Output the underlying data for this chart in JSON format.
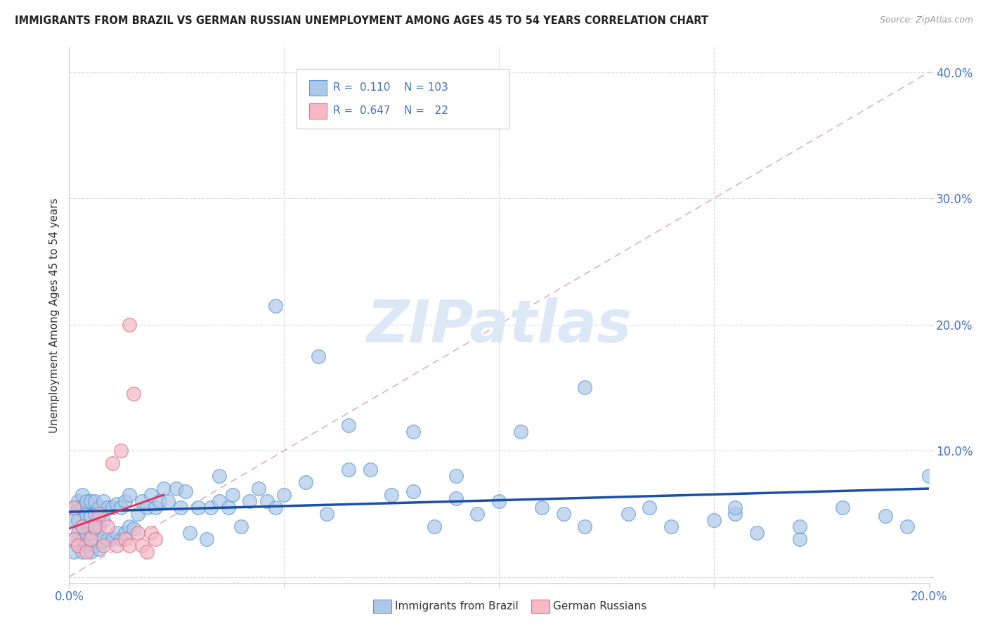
{
  "title": "IMMIGRANTS FROM BRAZIL VS GERMAN RUSSIAN UNEMPLOYMENT AMONG AGES 45 TO 54 YEARS CORRELATION CHART",
  "source": "Source: ZipAtlas.com",
  "ylabel": "Unemployment Among Ages 45 to 54 years",
  "xmin": 0.0,
  "xmax": 0.2,
  "ymin": -0.005,
  "ymax": 0.42,
  "x_ticks": [
    0.0,
    0.05,
    0.1,
    0.15,
    0.2
  ],
  "x_tick_labels": [
    "0.0%",
    "",
    "",
    "",
    "20.0%"
  ],
  "y_ticks": [
    0.0,
    0.1,
    0.2,
    0.3,
    0.4
  ],
  "y_tick_labels": [
    "",
    "10.0%",
    "20.0%",
    "30.0%",
    "40.0%"
  ],
  "brazil_color": "#adc8e8",
  "brazil_edge": "#5b9bd5",
  "german_color": "#f5b8c4",
  "german_edge": "#e07090",
  "brazil_R": 0.11,
  "brazil_N": 103,
  "german_R": 0.647,
  "german_N": 22,
  "brazil_line_color": "#1a4faa",
  "german_line_color": "#e0305a",
  "diagonal_color": "#e0b0c0",
  "diagonal_style": "--",
  "watermark": "ZIPatlas",
  "watermark_color": "#dce8f5",
  "legend_brazil": "Immigrants from Brazil",
  "legend_german": "German Russians",
  "brazil_x": [
    0.001,
    0.001,
    0.001,
    0.001,
    0.002,
    0.002,
    0.002,
    0.002,
    0.002,
    0.003,
    0.003,
    0.003,
    0.003,
    0.003,
    0.004,
    0.004,
    0.004,
    0.004,
    0.005,
    0.005,
    0.005,
    0.005,
    0.006,
    0.006,
    0.006,
    0.006,
    0.007,
    0.007,
    0.007,
    0.008,
    0.008,
    0.008,
    0.009,
    0.009,
    0.01,
    0.01,
    0.011,
    0.011,
    0.012,
    0.012,
    0.013,
    0.013,
    0.014,
    0.014,
    0.015,
    0.016,
    0.017,
    0.018,
    0.019,
    0.02,
    0.021,
    0.022,
    0.023,
    0.025,
    0.026,
    0.027,
    0.028,
    0.03,
    0.032,
    0.033,
    0.035,
    0.035,
    0.037,
    0.038,
    0.04,
    0.042,
    0.044,
    0.046,
    0.048,
    0.05,
    0.055,
    0.06,
    0.065,
    0.07,
    0.075,
    0.08,
    0.085,
    0.09,
    0.095,
    0.1,
    0.11,
    0.115,
    0.12,
    0.13,
    0.14,
    0.15,
    0.155,
    0.16,
    0.17,
    0.18,
    0.19,
    0.195,
    0.2,
    0.048,
    0.065,
    0.08,
    0.105,
    0.12,
    0.135,
    0.155,
    0.17,
    0.058,
    0.09
  ],
  "brazil_y": [
    0.02,
    0.03,
    0.045,
    0.055,
    0.025,
    0.035,
    0.045,
    0.055,
    0.06,
    0.02,
    0.03,
    0.04,
    0.055,
    0.065,
    0.025,
    0.035,
    0.05,
    0.06,
    0.02,
    0.035,
    0.048,
    0.06,
    0.025,
    0.038,
    0.05,
    0.06,
    0.022,
    0.04,
    0.055,
    0.028,
    0.045,
    0.06,
    0.03,
    0.055,
    0.03,
    0.055,
    0.035,
    0.058,
    0.03,
    0.055,
    0.035,
    0.06,
    0.04,
    0.065,
    0.038,
    0.05,
    0.06,
    0.055,
    0.065,
    0.055,
    0.06,
    0.07,
    0.06,
    0.07,
    0.055,
    0.068,
    0.035,
    0.055,
    0.03,
    0.055,
    0.06,
    0.08,
    0.055,
    0.065,
    0.04,
    0.06,
    0.07,
    0.06,
    0.055,
    0.065,
    0.075,
    0.05,
    0.085,
    0.085,
    0.065,
    0.068,
    0.04,
    0.062,
    0.05,
    0.06,
    0.055,
    0.05,
    0.04,
    0.05,
    0.04,
    0.045,
    0.05,
    0.035,
    0.03,
    0.055,
    0.048,
    0.04,
    0.08,
    0.215,
    0.12,
    0.115,
    0.115,
    0.15,
    0.055,
    0.055,
    0.04,
    0.175,
    0.08
  ],
  "german_x": [
    0.001,
    0.001,
    0.002,
    0.003,
    0.004,
    0.005,
    0.006,
    0.007,
    0.008,
    0.009,
    0.01,
    0.011,
    0.012,
    0.013,
    0.014,
    0.014,
    0.015,
    0.016,
    0.017,
    0.018,
    0.019,
    0.02
  ],
  "german_y": [
    0.03,
    0.055,
    0.025,
    0.04,
    0.02,
    0.03,
    0.04,
    0.05,
    0.025,
    0.04,
    0.09,
    0.025,
    0.1,
    0.03,
    0.2,
    0.025,
    0.145,
    0.035,
    0.025,
    0.02,
    0.035,
    0.03
  ]
}
